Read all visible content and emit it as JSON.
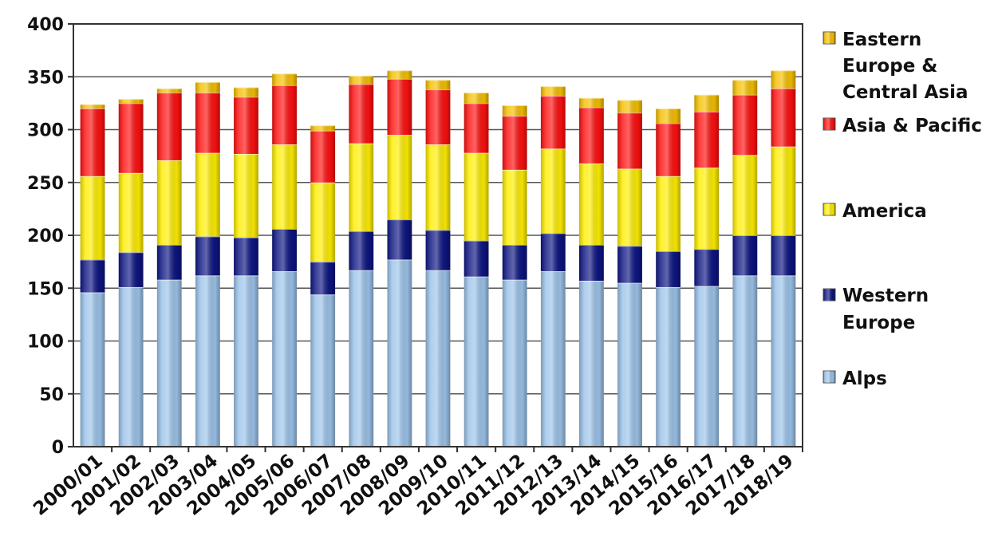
{
  "chart_data": {
    "type": "bar",
    "stacked": true,
    "title": "",
    "xlabel": "",
    "ylabel": "",
    "ylim": [
      0,
      400
    ],
    "yticks": [
      0,
      50,
      100,
      150,
      200,
      250,
      300,
      350,
      400
    ],
    "grid": "horizontal",
    "legend_position": "right",
    "categories": [
      "2000/01",
      "2001/02",
      "2002/03",
      "2003/04",
      "2004/05",
      "2005/06",
      "2006/07",
      "2007/08",
      "2008/09",
      "2009/10",
      "2010/11",
      "2011/12",
      "2012/13",
      "2013/14",
      "2014/15",
      "2015/16",
      "2016/17",
      "2017/18",
      "2018/19"
    ],
    "series": [
      {
        "name": "Alps",
        "color": "#9cc3ea",
        "values": [
          146,
          151,
          158,
          162,
          162,
          166,
          144,
          167,
          177,
          167,
          161,
          158,
          166,
          157,
          155,
          151,
          152,
          162,
          162
        ]
      },
      {
        "name": "Western Europe",
        "color": "#0d1582",
        "values": [
          31,
          33,
          33,
          37,
          36,
          40,
          31,
          37,
          38,
          38,
          34,
          33,
          36,
          34,
          35,
          34,
          35,
          38,
          38
        ]
      },
      {
        "name": "America",
        "color": "#ffee00",
        "values": [
          79,
          75,
          80,
          79,
          79,
          80,
          75,
          83,
          80,
          81,
          83,
          71,
          80,
          77,
          73,
          71,
          77,
          76,
          84
        ]
      },
      {
        "name": "Asia & Pacific",
        "color": "#ff1010",
        "values": [
          64,
          66,
          64,
          57,
          54,
          56,
          49,
          56,
          53,
          52,
          47,
          51,
          50,
          53,
          53,
          50,
          53,
          57,
          55
        ]
      },
      {
        "name": "Eastern Europe & Central Asia",
        "color": "#f5c000",
        "values": [
          4,
          4,
          4,
          10,
          9,
          11,
          5,
          8,
          8,
          9,
          10,
          10,
          9,
          9,
          12,
          14,
          16,
          14,
          17
        ]
      }
    ],
    "legend_labels": [
      {
        "series": "Eastern Europe & Central Asia",
        "lines": [
          "Eastern",
          "Europe &",
          "Central Asia"
        ]
      },
      {
        "series": "Asia & Pacific",
        "lines": [
          "Asia & Pacific"
        ]
      },
      {
        "series": "America",
        "lines": [
          "America"
        ]
      },
      {
        "series": "Western Europe",
        "lines": [
          "Western",
          "Europe"
        ]
      },
      {
        "series": "Alps",
        "lines": [
          "Alps"
        ]
      }
    ]
  }
}
